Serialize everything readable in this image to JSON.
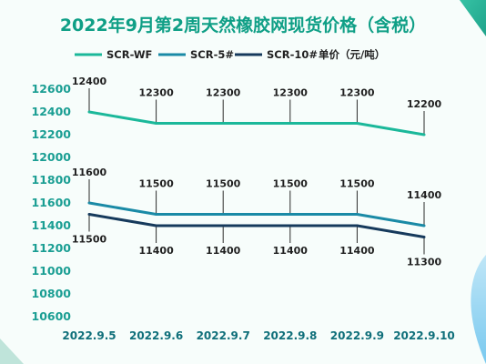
{
  "chart_data": {
    "type": "line",
    "title": "2022年9月第2周天然橡胶网现货价格（含税）",
    "unit_label": "单价（元/吨）",
    "categories": [
      "2022.9.5",
      "2022.9.6",
      "2022.9.7",
      "2022.9.8",
      "2022.9.9",
      "2022.9.10"
    ],
    "series": [
      {
        "name": "SCR-WF",
        "values": [
          12400,
          12300,
          12300,
          12300,
          12300,
          12200
        ],
        "color": "#1bb89a",
        "label_position": "above"
      },
      {
        "name": "SCR-5#",
        "values": [
          11600,
          11500,
          11500,
          11500,
          11500,
          11400
        ],
        "color": "#1a8aa6",
        "label_position": "above"
      },
      {
        "name": "SCR-10#",
        "values": [
          11500,
          11400,
          11400,
          11400,
          11400,
          11300
        ],
        "color": "#163a5c",
        "label_position": "below"
      }
    ],
    "yticks": [
      10600,
      10800,
      11000,
      11200,
      11400,
      11600,
      11800,
      12000,
      12200,
      12400,
      12600
    ],
    "ylim": [
      10600,
      12600
    ],
    "grid": false,
    "legend_position": "top"
  }
}
